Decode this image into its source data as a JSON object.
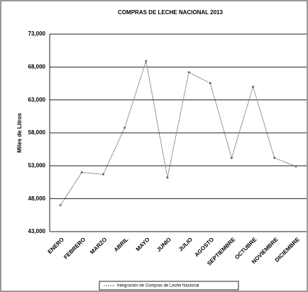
{
  "chart_data": {
    "type": "line",
    "title": "COMPRAS DE LECHE NACIONAL 2013",
    "y_label": "Miles de Litros",
    "categories": [
      "ENERO",
      "FEBRERO",
      "MARZO",
      "ABRIL",
      "MAYO",
      "JUNIO",
      "JULIO",
      "AGOSTO",
      "SEPTIEMBRE",
      "OCTUBRE",
      "NOVIEMBRE",
      "DICIEMBRE"
    ],
    "series": [
      {
        "name": "Integración de Compras de Leche Nacional",
        "color": "#666666",
        "values": [
          47000,
          52000,
          51700,
          58750,
          68900,
          51200,
          67200,
          65550,
          54200,
          65000,
          54200,
          52900
        ]
      }
    ],
    "ylim": [
      43000,
      73000
    ],
    "yticks": [
      {
        "value": 43000,
        "label": "43,000"
      },
      {
        "value": 48000,
        "label": "48,000"
      },
      {
        "value": 53000,
        "label": "53,000"
      },
      {
        "value": 58000,
        "label": "58,000"
      },
      {
        "value": 63000,
        "label": "63,000"
      },
      {
        "value": 68000,
        "label": "68,000"
      },
      {
        "value": 73000,
        "label": "73,000"
      }
    ],
    "grid": true,
    "legend": "bottom"
  }
}
